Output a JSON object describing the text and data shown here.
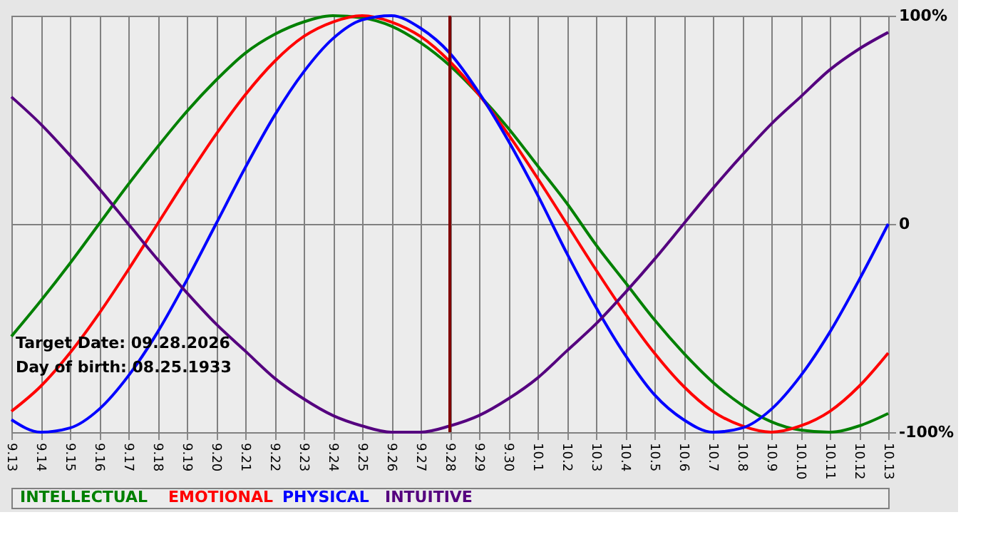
{
  "chart_data": {
    "type": "line",
    "categories": [
      "9.13",
      "9.14",
      "9.15",
      "9.16",
      "9.17",
      "9.18",
      "9.19",
      "9.20",
      "9.21",
      "9.22",
      "9.23",
      "9.24",
      "9.25",
      "9.26",
      "9.27",
      "9.28",
      "9.29",
      "9.30",
      "10.1",
      "10.2",
      "10.3",
      "10.4",
      "10.5",
      "10.6",
      "10.7",
      "10.8",
      "10.9",
      "10.10",
      "10.11",
      "10.12",
      "10.13"
    ],
    "ylim": [
      -100,
      100
    ],
    "yticks": [
      {
        "value": -100,
        "label": "-100%"
      },
      0,
      {
        "value": 100,
        "label": "100%"
      }
    ],
    "series": [
      {
        "name": "INTELLECTUAL",
        "color": "#008000",
        "values": [
          -54,
          -37,
          -19,
          0,
          19,
          37,
          54,
          69,
          82,
          91,
          97,
          100,
          99,
          95,
          87,
          76,
          62,
          46,
          28,
          10,
          -10,
          -28,
          -46,
          -62,
          -76,
          -87,
          -95,
          -99,
          -100,
          -97,
          -91
        ]
      },
      {
        "name": "EMOTIONAL",
        "color": "#ff0000",
        "values": [
          -90,
          -78,
          -62,
          -43,
          -22,
          0,
          22,
          43,
          62,
          78,
          90,
          97,
          100,
          97,
          90,
          78,
          62,
          43,
          22,
          0,
          -22,
          -43,
          -62,
          -78,
          -90,
          -97,
          -100,
          -97,
          -90,
          -78,
          -62
        ]
      },
      {
        "name": "PHYSICAL",
        "color": "#0000ff",
        "values": [
          -94,
          -100,
          -98,
          -89,
          -73,
          -52,
          -27,
          0,
          27,
          52,
          73,
          89,
          98,
          100,
          94,
          82,
          63,
          40,
          14,
          -14,
          -40,
          -63,
          -82,
          -94,
          -100,
          -98,
          -89,
          -73,
          -52,
          -27,
          0
        ]
      },
      {
        "name": "INTUITIVE",
        "color": "#55007f",
        "values": [
          61,
          48,
          33,
          17,
          0,
          -17,
          -33,
          -48,
          -61,
          -74,
          -84,
          -92,
          -97,
          -100,
          -100,
          -97,
          -92,
          -84,
          -74,
          -61,
          -48,
          -33,
          -17,
          0,
          17,
          33,
          48,
          61,
          74,
          84,
          92
        ]
      }
    ],
    "ref_lines": [
      {
        "axis": "x",
        "value": "9.28",
        "color": "#800000"
      }
    ],
    "annotations": [
      "Target Date: 09.28.2026",
      "Day of birth: 08.25.1933"
    ],
    "grid": true,
    "legend": "bottom",
    "line_style": "solid",
    "marker": "none"
  }
}
